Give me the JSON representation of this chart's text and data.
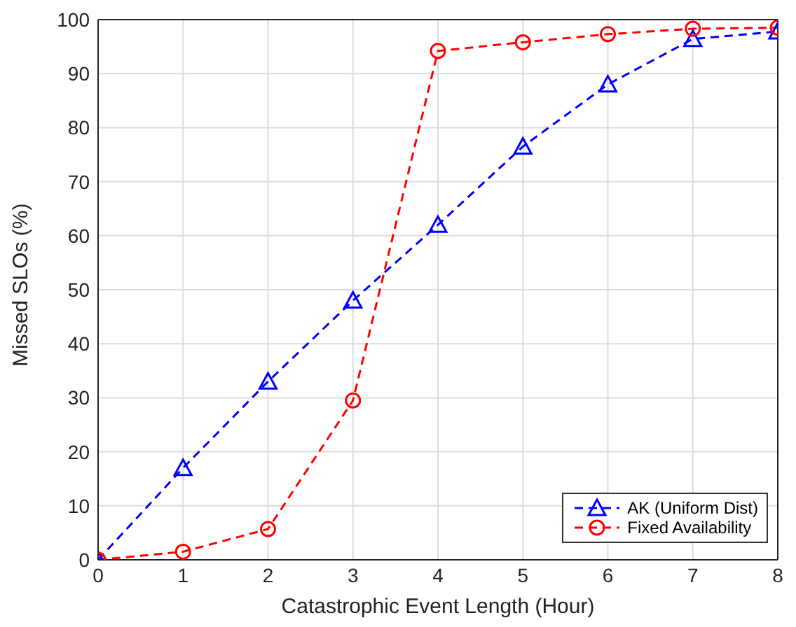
{
  "chart_data": {
    "type": "line",
    "xlabel": "Catastrophic Event Length (Hour)",
    "ylabel": "Missed SLOs (%)",
    "x": [
      0,
      1,
      2,
      3,
      4,
      5,
      6,
      7,
      8
    ],
    "series": [
      {
        "name": "AK (Uniform Dist)",
        "color": "#0000ff",
        "marker": "triangle",
        "line_style": "dashed",
        "values": [
          0,
          17,
          33,
          48,
          62,
          76.5,
          88,
          96.4,
          97.8
        ]
      },
      {
        "name": "Fixed Availability",
        "color": "#ff0000",
        "marker": "circle",
        "line_style": "dashed",
        "values": [
          0,
          1.5,
          5.7,
          29.5,
          94.2,
          95.8,
          97.3,
          98.3,
          98.5
        ]
      }
    ],
    "xlim": [
      0,
      8
    ],
    "xticks": [
      0,
      1,
      2,
      3,
      4,
      5,
      6,
      7,
      8
    ],
    "ylim": [
      0,
      100
    ],
    "yticks": [
      0,
      10,
      20,
      30,
      40,
      50,
      60,
      70,
      80,
      90,
      100
    ],
    "grid": true,
    "legend": "bottom right"
  }
}
